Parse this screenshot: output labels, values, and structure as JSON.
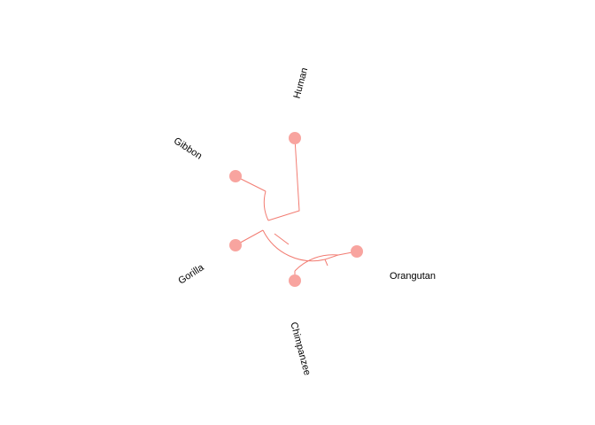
{
  "tree": {
    "tips": [
      {
        "id": "human",
        "label": "Human"
      },
      {
        "id": "gibbon",
        "label": "Gibbon"
      },
      {
        "id": "gorilla",
        "label": "Gorilla"
      },
      {
        "id": "chimpanzee",
        "label": "Chimpanzee"
      },
      {
        "id": "orangutan",
        "label": "Orangutan"
      }
    ],
    "colors": {
      "branch": "#f27c72",
      "tip": "#f8a49f",
      "label": "#000000"
    }
  }
}
